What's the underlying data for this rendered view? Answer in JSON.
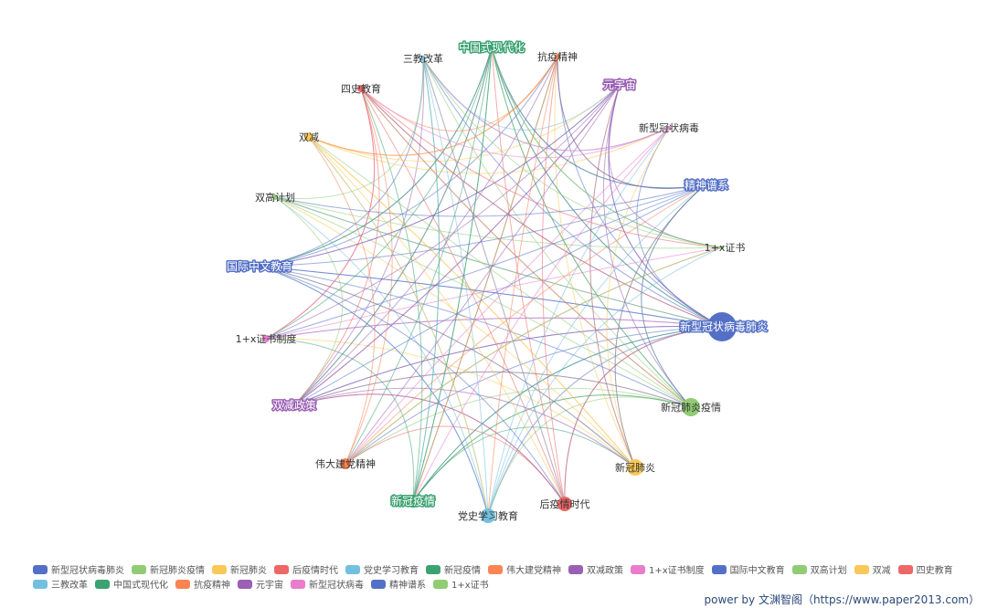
{
  "nodes": [
    {
      "name": "新型冠状病毒肺炎",
      "color": "#5470c6",
      "highlight": true
    },
    {
      "name": "新冠肺炎疫情",
      "color": "#91cc75",
      "highlight": false
    },
    {
      "name": "新冠肺炎",
      "color": "#fac858",
      "highlight": false
    },
    {
      "name": "后疫情时代",
      "color": "#ee6666",
      "highlight": false
    },
    {
      "name": "党史学习教育",
      "color": "#73c0de",
      "highlight": false
    },
    {
      "name": "新冠疫情",
      "color": "#3ba272",
      "highlight": true
    },
    {
      "name": "伟大建党精神",
      "color": "#fc8452",
      "highlight": false
    },
    {
      "name": "双减政策",
      "color": "#9a60b4",
      "highlight": true
    },
    {
      "name": "1+x证书制度",
      "color": "#ea7ccc",
      "highlight": false
    },
    {
      "name": "国际中文教育",
      "color": "#5470c6",
      "highlight": true
    },
    {
      "name": "双高计划",
      "color": "#91cc75",
      "highlight": false
    },
    {
      "name": "双减",
      "color": "#fac858",
      "highlight": false
    },
    {
      "name": "四史教育",
      "color": "#ee6666",
      "highlight": false
    },
    {
      "name": "三教改革",
      "color": "#73c0de",
      "highlight": false
    },
    {
      "name": "中国式现代化",
      "color": "#3ba272",
      "highlight": true
    },
    {
      "name": "抗疫精神",
      "color": "#fc8452",
      "highlight": false
    },
    {
      "name": "元宇宙",
      "color": "#9a60b4",
      "highlight": true
    },
    {
      "name": "新型冠状病毒",
      "color": "#ea7ccc",
      "highlight": false
    },
    {
      "name": "精神谱系",
      "color": "#5470c6",
      "highlight": true
    },
    {
      "name": "1+x证书",
      "color": "#91cc75",
      "highlight": false
    }
  ],
  "footer": {
    "power_prefix": "power by",
    "power_text": "文渊智阁（https://www.paper2013.com）"
  }
}
